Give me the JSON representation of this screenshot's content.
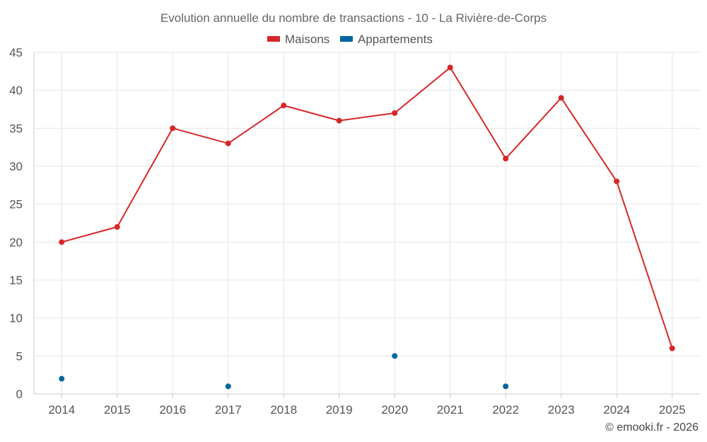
{
  "chart_data": {
    "type": "line",
    "title": "Evolution annuelle du nombre de transactions - 10 - La Rivière-de-Corps",
    "categories": [
      "2014",
      "2015",
      "2016",
      "2017",
      "2018",
      "2019",
      "2020",
      "2021",
      "2022",
      "2023",
      "2024",
      "2025"
    ],
    "series": [
      {
        "name": "Maisons",
        "color": "#d62728",
        "values": [
          20,
          22,
          35,
          33,
          38,
          36,
          37,
          43,
          31,
          39,
          28,
          6
        ],
        "style": "line+markers"
      },
      {
        "name": "Appartements",
        "color": "#00669e",
        "values": [
          2,
          null,
          null,
          1,
          null,
          null,
          5,
          null,
          1,
          null,
          null,
          null
        ],
        "style": "markers"
      }
    ],
    "ylim": [
      0,
      45
    ],
    "yticks": [
      0,
      5,
      10,
      15,
      20,
      25,
      30,
      35,
      40,
      45
    ],
    "xlabel": "",
    "ylabel": "",
    "grid": true,
    "legend_position": "top-center"
  },
  "credit": "© emooki.fr - 2026"
}
